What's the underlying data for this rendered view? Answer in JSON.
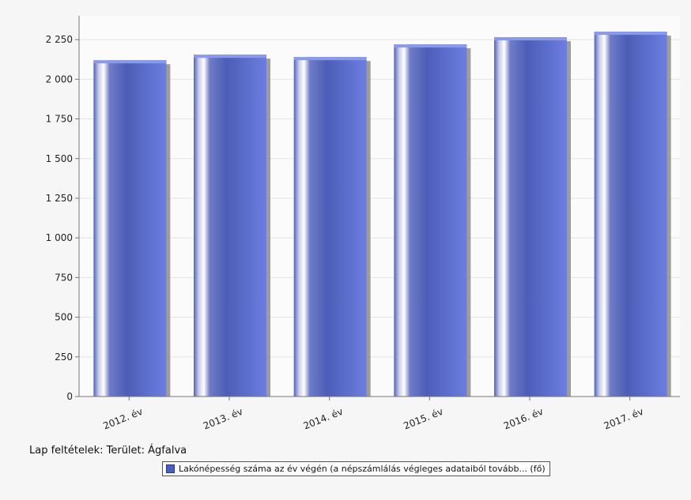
{
  "chart_data": {
    "type": "bar",
    "categories": [
      "2012. év",
      "2013. év",
      "2014. év",
      "2015. év",
      "2016. év",
      "2017. év"
    ],
    "series": [
      {
        "name": "Lakónépesség száma az év végén (a népszámlálás végleges adataiból tovább... (fő)",
        "values": [
          2120,
          2155,
          2140,
          2220,
          2265,
          2300
        ]
      }
    ],
    "y_ticks": [
      "0",
      "250",
      "500",
      "750",
      "1 000",
      "1 250",
      "1 500",
      "1 750",
      "2 000",
      "2 250"
    ],
    "ylim": [
      0,
      2400
    ],
    "grid": true,
    "legend_position": "bottom",
    "bar_color": "#4a5fc0"
  },
  "caption": "Lap feltételek: Terület: Ágfalva",
  "legend": {
    "label": "Lakónépesség száma az év végén (a népszámlálás végleges adataiból tovább... (fő)"
  }
}
